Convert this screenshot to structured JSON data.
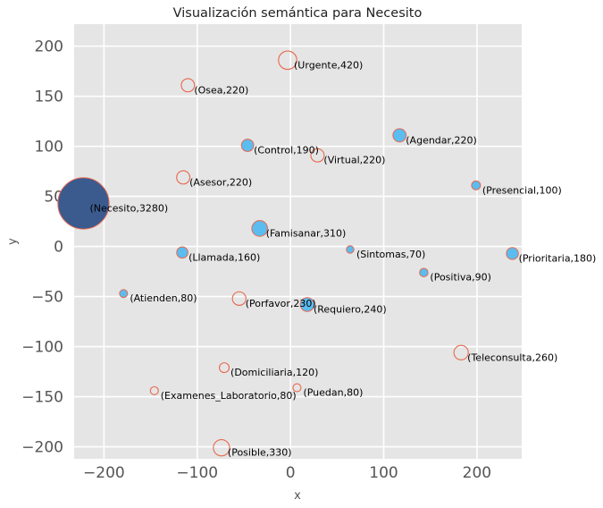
{
  "chart_data": {
    "type": "scatter",
    "title": "Visualización semántica para Necesito",
    "xlabel": "x",
    "ylabel": "y",
    "xlim": [
      -232,
      248
    ],
    "ylim": [
      -212,
      222
    ],
    "xticks": [
      -200,
      -100,
      0,
      100,
      200
    ],
    "yticks": [
      -200,
      -150,
      -100,
      -50,
      0,
      50,
      100,
      150,
      200
    ],
    "grid": true,
    "colors": {
      "background": "#e5e5e5",
      "grid": "#ffffff",
      "main_fill": "#3b5b8f",
      "filled": "#5bbcf0",
      "edge": "#e8684f"
    },
    "points": [
      {
        "label": "(Necesito,3280)",
        "x": -222,
        "y": 43,
        "size": 3280,
        "style": "main"
      },
      {
        "label": "(Urgente,420)",
        "x": -3,
        "y": 186,
        "size": 420,
        "style": "hollow"
      },
      {
        "label": "(Osea,220)",
        "x": -110,
        "y": 161,
        "size": 220,
        "style": "hollow"
      },
      {
        "label": "(Agendar,220)",
        "x": 117,
        "y": 111,
        "size": 220,
        "style": "filled"
      },
      {
        "label": "(Control,190)",
        "x": -46,
        "y": 101,
        "size": 190,
        "style": "filled"
      },
      {
        "label": "(Virtual,220)",
        "x": 29,
        "y": 91,
        "size": 220,
        "style": "hollow"
      },
      {
        "label": "(Asesor,220)",
        "x": -115,
        "y": 69,
        "size": 220,
        "style": "hollow"
      },
      {
        "label": "(Presencial,100)",
        "x": 199,
        "y": 61,
        "size": 100,
        "style": "filled"
      },
      {
        "label": "(Famisanar,310)",
        "x": -33,
        "y": 18,
        "size": 310,
        "style": "filled"
      },
      {
        "label": "(Sintomas,70)",
        "x": 64,
        "y": -3,
        "size": 70,
        "style": "filled"
      },
      {
        "label": "(Llamada,160)",
        "x": -116,
        "y": -6,
        "size": 160,
        "style": "filled"
      },
      {
        "label": "(Prioritaria,180)",
        "x": 238,
        "y": -7,
        "size": 180,
        "style": "filled"
      },
      {
        "label": "(Positiva,90)",
        "x": 143,
        "y": -26,
        "size": 90,
        "style": "filled"
      },
      {
        "label": "(Atienden,80)",
        "x": -179,
        "y": -47,
        "size": 80,
        "style": "filled"
      },
      {
        "label": "(Porfavor,230)",
        "x": -55,
        "y": -52,
        "size": 230,
        "style": "hollow"
      },
      {
        "label": "(Requiero,240)",
        "x": 18,
        "y": -58,
        "size": 240,
        "style": "filled"
      },
      {
        "label": "(Teleconsulta,260)",
        "x": 183,
        "y": -106,
        "size": 260,
        "style": "hollow"
      },
      {
        "label": "(Domiciliaria,120)",
        "x": -71,
        "y": -121,
        "size": 120,
        "style": "hollow"
      },
      {
        "label": "(Puedan,80)",
        "x": 7,
        "y": -141,
        "size": 80,
        "style": "hollow"
      },
      {
        "label": "(Examenes_Laboratorio,80)",
        "x": -146,
        "y": -144,
        "size": 80,
        "style": "hollow"
      },
      {
        "label": "(Posible,330)",
        "x": -74,
        "y": -201,
        "size": 330,
        "style": "hollow"
      }
    ]
  }
}
